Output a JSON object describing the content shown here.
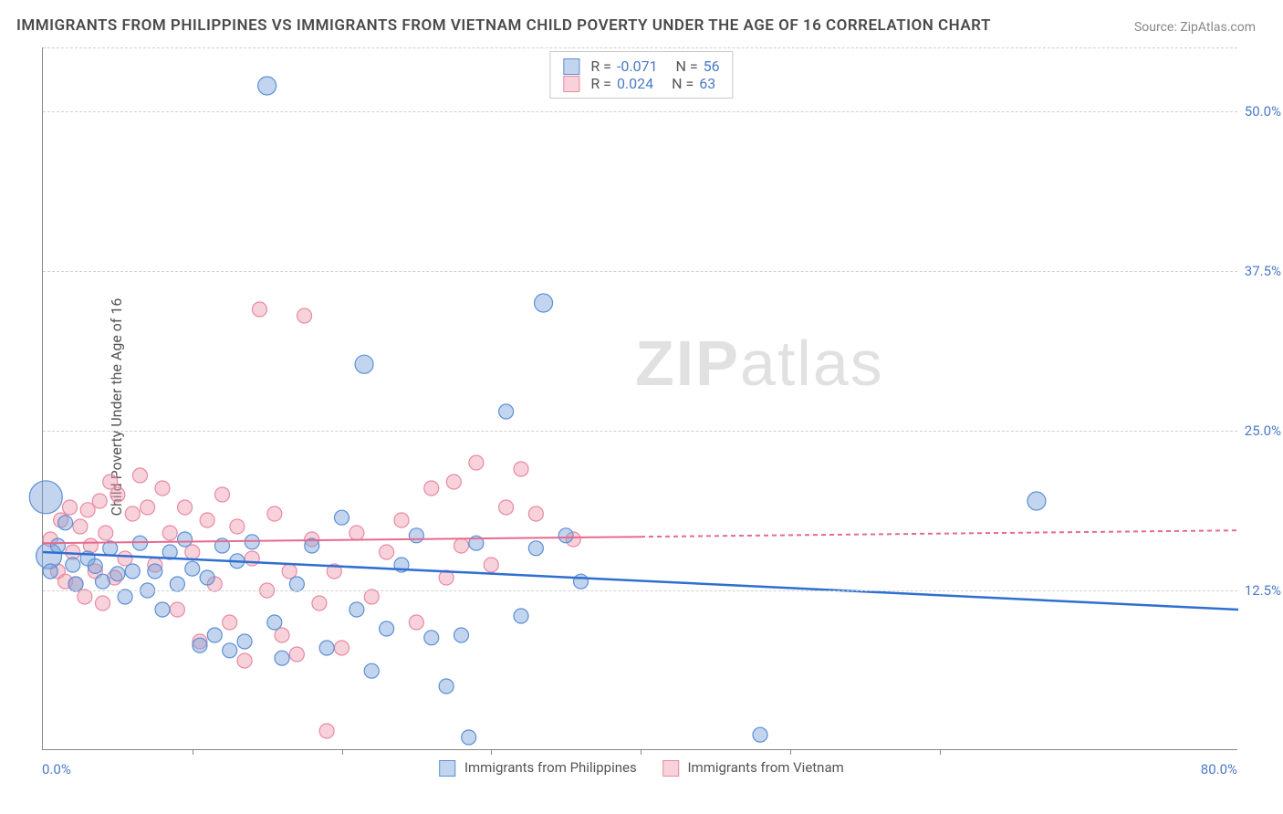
{
  "title": "IMMIGRANTS FROM PHILIPPINES VS IMMIGRANTS FROM VIETNAM CHILD POVERTY UNDER THE AGE OF 16 CORRELATION CHART",
  "source_prefix": "Source: ",
  "source_link": "ZipAtlas.com",
  "ylabel": "Child Poverty Under the Age of 16",
  "watermark_bold": "ZIP",
  "watermark_rest": "atlas",
  "chart": {
    "type": "scatter",
    "xlim": [
      0,
      80
    ],
    "ylim": [
      0,
      55
    ],
    "xticks": [
      10,
      20,
      30,
      40,
      50,
      60
    ],
    "xtick_label_min": "0.0%",
    "xtick_label_max": "80.0%",
    "yticks": [
      12.5,
      25.0,
      37.5,
      50.0
    ],
    "ytick_labels": [
      "12.5%",
      "25.0%",
      "37.5%",
      "50.0%"
    ],
    "grid_color": "#d0d0d0",
    "axis_color": "#888888",
    "background_color": "#ffffff",
    "label_color": "#4a7ac7",
    "marker_radius_default": 8,
    "series": [
      {
        "name": "Immigrants from Philippines",
        "fill": "rgba(122,162,217,0.45)",
        "stroke": "#5b8fd6",
        "R_label": "R = ",
        "R": "-0.071",
        "N_label": "N = ",
        "N": "56",
        "trend": {
          "y_at_x0": 15.5,
          "y_at_xmax": 11.0,
          "solid_until_x": 80,
          "stroke": "#2e6fd1",
          "width": 2.5
        },
        "points": [
          {
            "x": 0.2,
            "y": 19.8,
            "r": 18
          },
          {
            "x": 0.4,
            "y": 15.2,
            "r": 14
          },
          {
            "x": 0.5,
            "y": 14.0
          },
          {
            "x": 1.0,
            "y": 16.0
          },
          {
            "x": 1.5,
            "y": 17.8
          },
          {
            "x": 2.0,
            "y": 14.5
          },
          {
            "x": 2.2,
            "y": 13.0
          },
          {
            "x": 3.0,
            "y": 15.0
          },
          {
            "x": 3.5,
            "y": 14.4
          },
          {
            "x": 4.0,
            "y": 13.2
          },
          {
            "x": 4.5,
            "y": 15.8
          },
          {
            "x": 5.0,
            "y": 13.8
          },
          {
            "x": 5.5,
            "y": 12.0
          },
          {
            "x": 6.0,
            "y": 14.0
          },
          {
            "x": 6.5,
            "y": 16.2
          },
          {
            "x": 7.0,
            "y": 12.5
          },
          {
            "x": 7.5,
            "y": 14.0
          },
          {
            "x": 8.0,
            "y": 11.0
          },
          {
            "x": 8.5,
            "y": 15.5
          },
          {
            "x": 9.0,
            "y": 13.0
          },
          {
            "x": 9.5,
            "y": 16.5
          },
          {
            "x": 10.0,
            "y": 14.2
          },
          {
            "x": 10.5,
            "y": 8.2
          },
          {
            "x": 11.0,
            "y": 13.5
          },
          {
            "x": 11.5,
            "y": 9.0
          },
          {
            "x": 12.0,
            "y": 16.0
          },
          {
            "x": 12.5,
            "y": 7.8
          },
          {
            "x": 13.0,
            "y": 14.8
          },
          {
            "x": 13.5,
            "y": 8.5
          },
          {
            "x": 14.0,
            "y": 16.3
          },
          {
            "x": 15.0,
            "y": 52.0,
            "r": 10
          },
          {
            "x": 15.5,
            "y": 10.0
          },
          {
            "x": 16.0,
            "y": 7.2
          },
          {
            "x": 17.0,
            "y": 13.0
          },
          {
            "x": 18.0,
            "y": 16.0
          },
          {
            "x": 19.0,
            "y": 8.0
          },
          {
            "x": 20.0,
            "y": 18.2
          },
          {
            "x": 21.0,
            "y": 11.0
          },
          {
            "x": 21.5,
            "y": 30.2,
            "r": 10
          },
          {
            "x": 22.0,
            "y": 6.2
          },
          {
            "x": 23.0,
            "y": 9.5
          },
          {
            "x": 24.0,
            "y": 14.5
          },
          {
            "x": 25.0,
            "y": 16.8
          },
          {
            "x": 26.0,
            "y": 8.8
          },
          {
            "x": 27.0,
            "y": 5.0
          },
          {
            "x": 28.0,
            "y": 9.0
          },
          {
            "x": 28.5,
            "y": 1.0
          },
          {
            "x": 29.0,
            "y": 16.2
          },
          {
            "x": 31.0,
            "y": 26.5
          },
          {
            "x": 32.0,
            "y": 10.5
          },
          {
            "x": 33.5,
            "y": 35.0,
            "r": 10
          },
          {
            "x": 33.0,
            "y": 15.8
          },
          {
            "x": 35.0,
            "y": 16.8
          },
          {
            "x": 36.0,
            "y": 13.2
          },
          {
            "x": 48.0,
            "y": 1.2
          },
          {
            "x": 66.5,
            "y": 19.5,
            "r": 10
          }
        ]
      },
      {
        "name": "Immigrants from Vietnam",
        "fill": "rgba(240,155,175,0.45)",
        "stroke": "#e88aa3",
        "R_label": "R = ",
        "R": "0.024",
        "N_label": "N = ",
        "N": "63",
        "trend": {
          "y_at_x0": 16.2,
          "y_at_xmax": 17.2,
          "solid_until_x": 40,
          "stroke": "#e76a8f",
          "width": 2,
          "dash": "5,4"
        },
        "points": [
          {
            "x": 0.5,
            "y": 16.5
          },
          {
            "x": 1.0,
            "y": 14.0
          },
          {
            "x": 1.2,
            "y": 18.0
          },
          {
            "x": 1.5,
            "y": 13.2
          },
          {
            "x": 1.8,
            "y": 19.0
          },
          {
            "x": 2.0,
            "y": 15.5
          },
          {
            "x": 2.2,
            "y": 13.0
          },
          {
            "x": 2.5,
            "y": 17.5
          },
          {
            "x": 2.8,
            "y": 12.0
          },
          {
            "x": 3.0,
            "y": 18.8
          },
          {
            "x": 3.2,
            "y": 16.0
          },
          {
            "x": 3.5,
            "y": 14.0
          },
          {
            "x": 3.8,
            "y": 19.5
          },
          {
            "x": 4.0,
            "y": 11.5
          },
          {
            "x": 4.2,
            "y": 17.0
          },
          {
            "x": 4.5,
            "y": 21.0
          },
          {
            "x": 4.8,
            "y": 13.5
          },
          {
            "x": 5.0,
            "y": 20.0
          },
          {
            "x": 5.5,
            "y": 15.0
          },
          {
            "x": 6.0,
            "y": 18.5
          },
          {
            "x": 6.5,
            "y": 21.5
          },
          {
            "x": 7.0,
            "y": 19.0
          },
          {
            "x": 7.5,
            "y": 14.5
          },
          {
            "x": 8.0,
            "y": 20.5
          },
          {
            "x": 8.5,
            "y": 17.0
          },
          {
            "x": 9.0,
            "y": 11.0
          },
          {
            "x": 9.5,
            "y": 19.0
          },
          {
            "x": 10.0,
            "y": 15.5
          },
          {
            "x": 10.5,
            "y": 8.5
          },
          {
            "x": 11.0,
            "y": 18.0
          },
          {
            "x": 11.5,
            "y": 13.0
          },
          {
            "x": 12.0,
            "y": 20.0
          },
          {
            "x": 12.5,
            "y": 10.0
          },
          {
            "x": 13.0,
            "y": 17.5
          },
          {
            "x": 13.5,
            "y": 7.0
          },
          {
            "x": 14.0,
            "y": 15.0
          },
          {
            "x": 14.5,
            "y": 34.5
          },
          {
            "x": 15.0,
            "y": 12.5
          },
          {
            "x": 15.5,
            "y": 18.5
          },
          {
            "x": 16.0,
            "y": 9.0
          },
          {
            "x": 16.5,
            "y": 14.0
          },
          {
            "x": 17.0,
            "y": 7.5
          },
          {
            "x": 17.5,
            "y": 34.0
          },
          {
            "x": 18.0,
            "y": 16.5
          },
          {
            "x": 18.5,
            "y": 11.5
          },
          {
            "x": 19.0,
            "y": 1.5
          },
          {
            "x": 19.5,
            "y": 14.0
          },
          {
            "x": 20.0,
            "y": 8.0
          },
          {
            "x": 21.0,
            "y": 17.0
          },
          {
            "x": 22.0,
            "y": 12.0
          },
          {
            "x": 23.0,
            "y": 15.5
          },
          {
            "x": 24.0,
            "y": 18.0
          },
          {
            "x": 25.0,
            "y": 10.0
          },
          {
            "x": 26.0,
            "y": 20.5
          },
          {
            "x": 27.0,
            "y": 13.5
          },
          {
            "x": 27.5,
            "y": 21.0
          },
          {
            "x": 28.0,
            "y": 16.0
          },
          {
            "x": 29.0,
            "y": 22.5
          },
          {
            "x": 30.0,
            "y": 14.5
          },
          {
            "x": 31.0,
            "y": 19.0
          },
          {
            "x": 32.0,
            "y": 22.0
          },
          {
            "x": 33.0,
            "y": 18.5
          },
          {
            "x": 35.5,
            "y": 16.5
          }
        ]
      }
    ]
  },
  "bottom_legend": {
    "series1_label": "Immigrants from Philippines",
    "series2_label": "Immigrants from Vietnam"
  }
}
